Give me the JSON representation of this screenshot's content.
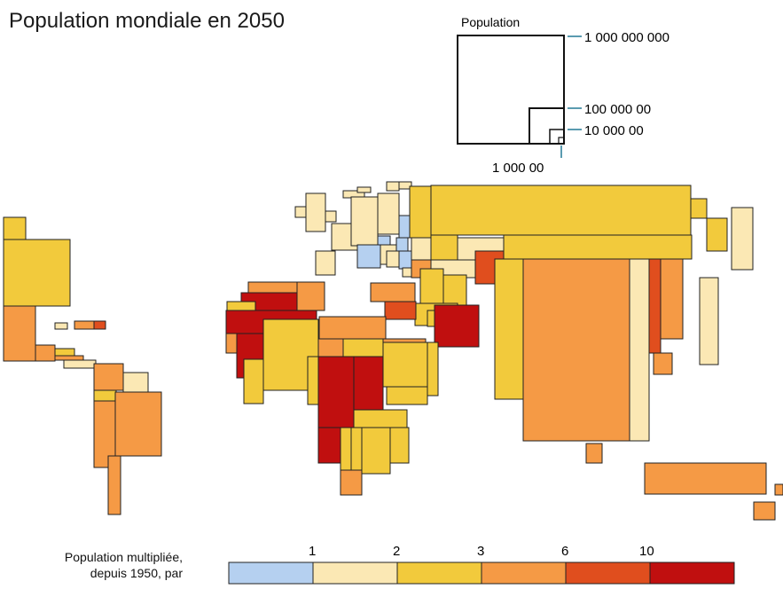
{
  "title": "Population mondiale en 2050",
  "size_legend": {
    "heading": "Population",
    "ticks": [
      {
        "label": "1 000 000 000"
      },
      {
        "label": "100 000 00"
      },
      {
        "label": "10 000 00"
      },
      {
        "label": "1 000 00"
      }
    ]
  },
  "color_legend": {
    "caption_line1": "Population multipliée,",
    "caption_line2": "depuis 1950, par",
    "tick_labels": [
      "1",
      "2",
      "3",
      "6",
      "10"
    ],
    "classes": [
      {
        "color": "#b5d0f0"
      },
      {
        "color": "#fbe8b4"
      },
      {
        "color": "#f2ca3c"
      },
      {
        "color": "#f59a45"
      },
      {
        "color": "#e04e1e"
      },
      {
        "color": "#c00f0f"
      }
    ]
  },
  "colors": {
    "c1": "#b5d0f0",
    "c2": "#fbe8b4",
    "c3": "#f2ca3c",
    "c4": "#f59a45",
    "c5": "#e04e1e",
    "c6": "#c00f0f",
    "leader": "#5a9bb0"
  }
}
